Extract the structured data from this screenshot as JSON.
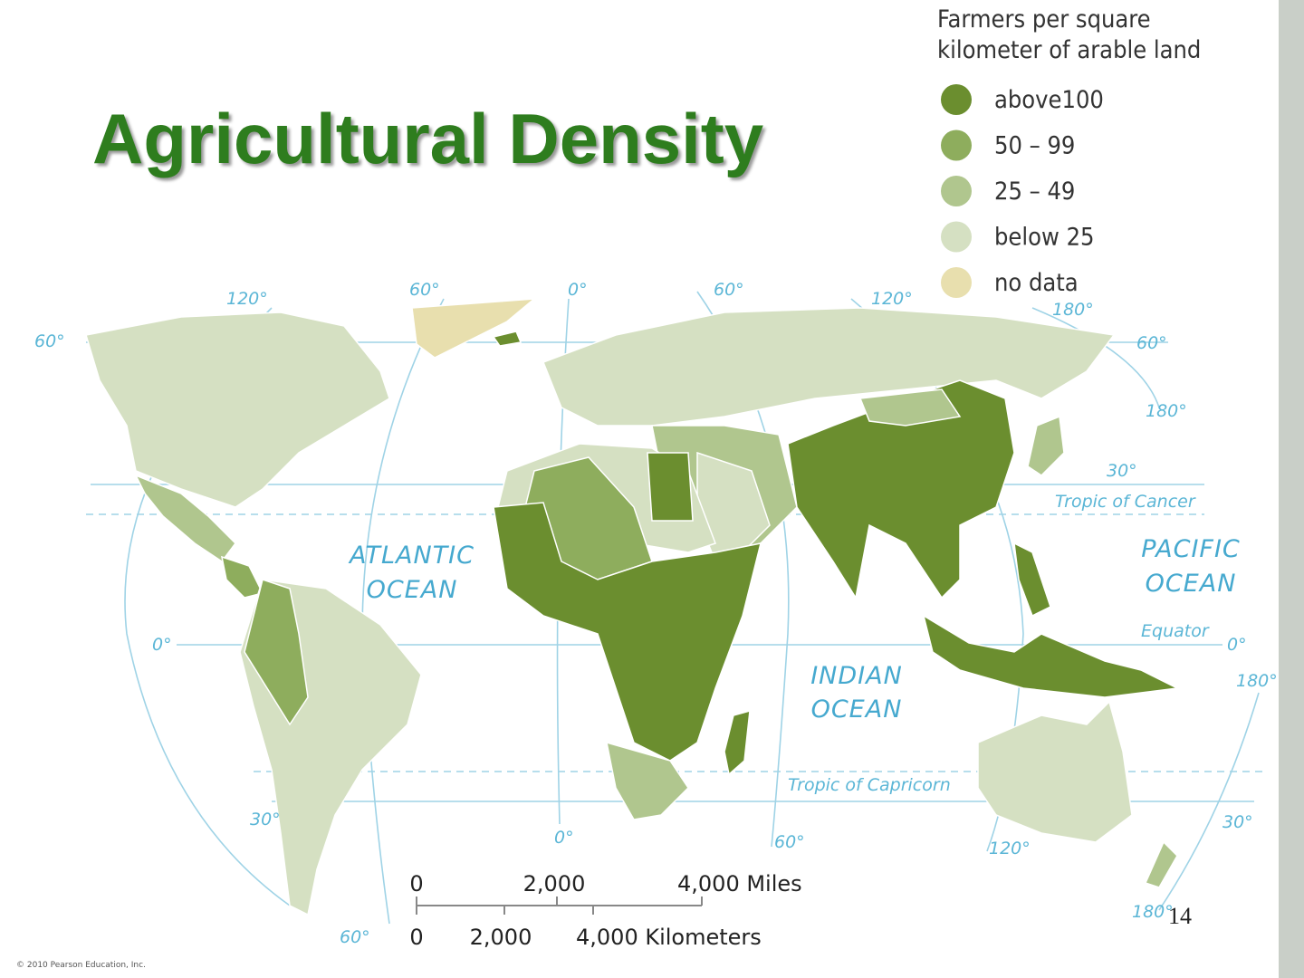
{
  "title": "Agricultural Density",
  "legend": {
    "title": [
      "Farmers per square",
      "kilometer of arable land"
    ],
    "items": [
      {
        "label": "above100",
        "color": "#6b8e2f"
      },
      {
        "label": "50 – 99",
        "color": "#8ead5d"
      },
      {
        "label": "25 – 49",
        "color": "#b0c68e"
      },
      {
        "label": "below 25",
        "color": "#d5e0c2"
      },
      {
        "label": "no data",
        "color": "#e8dfae"
      }
    ]
  },
  "graticule_labels": [
    "120°",
    "60°",
    "0°",
    "60°",
    "120°",
    "180°",
    "60°",
    "60°",
    "180°",
    "30°",
    "0°",
    "0°",
    "180°",
    "30°",
    "30°",
    "0°",
    "60°",
    "120°",
    "180°",
    "60°"
  ],
  "lines": [
    "Tropic of Cancer",
    "Equator",
    "Tropic of Capricorn"
  ],
  "oceans": [
    [
      "ATLANTIC",
      "OCEAN"
    ],
    [
      "PACIFIC",
      "OCEAN"
    ],
    [
      "INDIAN",
      "OCEAN"
    ]
  ],
  "scale": {
    "miles": [
      "0",
      "2,000",
      "4,000 Miles"
    ],
    "kilometers": [
      "0",
      "2,000",
      "4,000 Kilometers"
    ]
  },
  "page_number": "14",
  "copyright": "© 2010 Pearson Education, Inc."
}
